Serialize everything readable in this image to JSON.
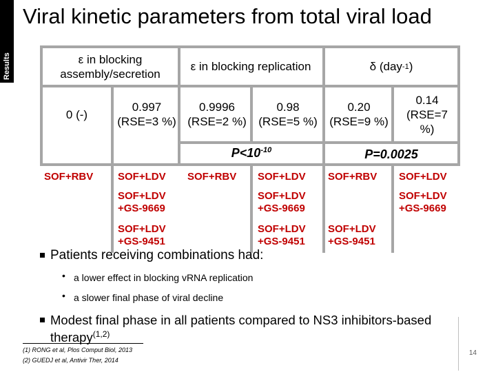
{
  "sidebar": {
    "label": "Results"
  },
  "title": "Viral kinetic parameters from total viral load",
  "table": {
    "headers": {
      "col1": "ε in blocking assembly/secretion",
      "col2": "ε in blocking replication",
      "col3_prefix": "δ (day",
      "col3_sup": "-1",
      "col3_suffix": ")"
    },
    "values": {
      "assembly_a": "0 (-)",
      "assembly_b": "0.997 (RSE=3 %)",
      "replication_a": "0.9996 (RSE=2 %)",
      "replication_b": "0.98 (RSE=5 %)",
      "delta_a": "0.20 (RSE=9 %)",
      "delta_b": "0.14 (RSE=7 %)"
    },
    "pvalues": {
      "replication_prefix": "P<10",
      "replication_sup": "-10",
      "delta": "P=0.0025"
    },
    "regimens": {
      "assembly_a": "SOF+RBV",
      "assembly_b1": "SOF+LDV",
      "assembly_b2a": "SOF+LDV",
      "assembly_b2b": "+GS-9669",
      "assembly_b3a": "SOF+LDV",
      "assembly_b3b": "+GS-9451",
      "replication_a": "SOF+RBV",
      "replication_b1": "SOF+LDV",
      "replication_b2a": "SOF+LDV",
      "replication_b2b": "+GS-9669",
      "replication_b3a": "SOF+LDV",
      "replication_b3b": "+GS-9451",
      "delta_a1": "SOF+RBV",
      "delta_a2a": "SOF+LDV",
      "delta_a2b": "+GS-9451",
      "delta_b1": "SOF+LDV",
      "delta_b2a": "SOF+LDV",
      "delta_b2b": "+GS-9669"
    }
  },
  "bullets": {
    "b1": "Patients receiving combinations had:",
    "b1_sub1": "a lower effect in blocking vRNA replication",
    "b1_sub2": "a slower final phase of viral decline",
    "b2_line1": "Modest final phase in all patients compared to NS3 inhibitors-based",
    "b2_line2": "therapy",
    "b2_sup": "(1,2)"
  },
  "references": {
    "r1": "(1) RONG et al, Plos Comput Biol, 2013",
    "r2": "(2) GUEDJ et al, Antivir Ther, 2014"
  },
  "page_number": "14",
  "colors": {
    "regimen": "#c00000",
    "grid": "#a6a6a6",
    "sidebar": "#000000"
  }
}
